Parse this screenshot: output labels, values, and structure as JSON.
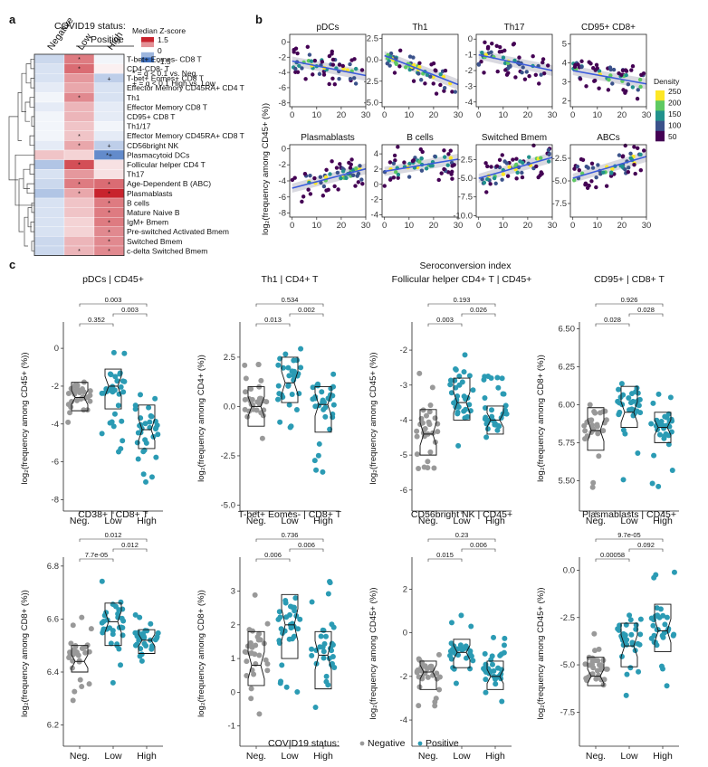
{
  "panel_labels": {
    "a": "a",
    "b": "b",
    "c": "c"
  },
  "heatmap": {
    "status_title": "COVID19 status:",
    "positive_label": "Positive",
    "columns": [
      "Negative",
      "Low",
      "High"
    ],
    "legend_title": "Median Z-score",
    "legend_ticks": [
      "1.5",
      "0",
      "-1.5"
    ],
    "legend_note_1": "* = q < 0.1 vs. Neg.",
    "legend_note_2": "+ = q < 0.1 High vs. Low",
    "rows": [
      {
        "label": "T-bet+ Eomes- CD8 T",
        "z": [
          -0.4,
          0.9,
          -0.1
        ],
        "marks": [
          "",
          "*",
          ""
        ]
      },
      {
        "label": "CD4-CD8- T",
        "z": [
          -0.3,
          1.0,
          0.1
        ],
        "marks": [
          "",
          "*",
          ""
        ]
      },
      {
        "label": "T-bet+ Eomes+ CD8 T",
        "z": [
          -0.3,
          0.7,
          -0.5
        ],
        "marks": [
          "",
          "",
          "+"
        ]
      },
      {
        "label": "Effector Memory CD45RA+ CD4 T",
        "z": [
          -0.2,
          0.6,
          -0.3
        ],
        "marks": [
          "",
          "",
          ""
        ]
      },
      {
        "label": "Th1",
        "z": [
          -0.1,
          0.8,
          -0.3
        ],
        "marks": [
          "",
          "*",
          ""
        ]
      },
      {
        "label": "Effector Memory CD8 T",
        "z": [
          -0.2,
          0.5,
          -0.2
        ],
        "marks": [
          "",
          "",
          ""
        ]
      },
      {
        "label": "CD95+ CD8 T",
        "z": [
          -0.1,
          0.5,
          -0.2
        ],
        "marks": [
          "",
          "",
          ""
        ]
      },
      {
        "label": "Th1/17",
        "z": [
          -0.1,
          0.4,
          -0.1
        ],
        "marks": [
          "",
          "",
          ""
        ]
      },
      {
        "label": "Effector Memory CD45RA+ CD8 T",
        "z": [
          -0.1,
          0.4,
          -0.2
        ],
        "marks": [
          "",
          "*",
          ""
        ]
      },
      {
        "label": "CD56bright NK",
        "z": [
          -0.2,
          0.6,
          -0.5
        ],
        "marks": [
          "",
          "*",
          "+"
        ]
      },
      {
        "label": "Plasmacytoid DCs",
        "z": [
          0.4,
          0.3,
          -1.2
        ],
        "marks": [
          "",
          "",
          "*+"
        ]
      },
      {
        "label": "Follicular helper CD4 T",
        "z": [
          -0.6,
          1.2,
          0.2
        ],
        "marks": [
          "",
          "*",
          ""
        ]
      },
      {
        "label": "Th17",
        "z": [
          -0.3,
          0.7,
          0.2
        ],
        "marks": [
          "",
          "",
          ""
        ]
      },
      {
        "label": "Age-Dependent B (ABC)",
        "z": [
          -0.4,
          0.9,
          1.0
        ],
        "marks": [
          "",
          "*",
          "*"
        ]
      },
      {
        "label": "Plasmablasts",
        "z": [
          -0.6,
          0.6,
          1.5
        ],
        "marks": [
          "",
          "*",
          "*"
        ]
      },
      {
        "label": "B cells",
        "z": [
          -0.3,
          0.4,
          0.9
        ],
        "marks": [
          "",
          "",
          "*"
        ]
      },
      {
        "label": "Mature Naive B",
        "z": [
          -0.3,
          0.4,
          0.9
        ],
        "marks": [
          "",
          "",
          "*"
        ]
      },
      {
        "label": "IgM+ Bmem",
        "z": [
          -0.3,
          0.3,
          0.9
        ],
        "marks": [
          "",
          "",
          "*"
        ]
      },
      {
        "label": "Pre-switched Activated Bmem",
        "z": [
          -0.3,
          0.3,
          0.8
        ],
        "marks": [
          "",
          "",
          "*"
        ]
      },
      {
        "label": "Switched Bmem",
        "z": [
          -0.4,
          0.5,
          0.8
        ],
        "marks": [
          "",
          "",
          "*"
        ]
      },
      {
        "label": "c-delta Switched Bmem",
        "z": [
          -0.4,
          0.5,
          0.8
        ],
        "marks": [
          "",
          "*",
          "*"
        ]
      }
    ]
  },
  "scatter_panel": {
    "xlabel": "Seroconversion index",
    "ylabel": "log₂(frequency among CD45+ (%))",
    "density_title": "Density",
    "density_ticks": [
      "250",
      "200",
      "150",
      "100",
      "50"
    ],
    "density_colors": [
      "#440154",
      "#3b528b",
      "#21918c",
      "#5ec962",
      "#fde725"
    ],
    "trend_color": "#3b5bdb"
  },
  "status_colors": {
    "Negative": "#999999",
    "Positive": "#2b9bb4"
  },
  "legend_bottom": {
    "title": "COVID19 status:",
    "negative": "Negative",
    "positive": "Positive"
  },
  "chart_data": [
    {
      "type": "scatter",
      "title": "pDCs",
      "xticks": [
        "0",
        "10",
        "20",
        "30"
      ],
      "yticks": [
        "0",
        "-2",
        "-4",
        "-6",
        "-8"
      ],
      "xlim": [
        -1,
        30
      ],
      "ylim": [
        -8.5,
        1
      ],
      "trend": [
        [
          0,
          -2.5
        ],
        [
          30,
          -4.4
        ]
      ]
    },
    {
      "type": "scatter",
      "title": "Th1",
      "xticks": [
        "0",
        "10",
        "20",
        "30"
      ],
      "yticks": [
        "2.5",
        "0.0",
        "-2.5",
        "-5.0"
      ],
      "xlim": [
        -1,
        30
      ],
      "ylim": [
        -5.5,
        3
      ],
      "trend": [
        [
          0,
          0.5
        ],
        [
          30,
          -2.9
        ]
      ]
    },
    {
      "type": "scatter",
      "title": "Th17",
      "xticks": [
        "0",
        "10",
        "20",
        "30"
      ],
      "yticks": [
        "0",
        "-1",
        "-2",
        "-3",
        "-4"
      ],
      "xlim": [
        -1,
        30
      ],
      "ylim": [
        -4.3,
        0.3
      ],
      "trend": [
        [
          0,
          -1.0
        ],
        [
          30,
          -2.0
        ]
      ]
    },
    {
      "type": "scatter",
      "title": "CD95+ CD8+",
      "xticks": [
        "0",
        "10",
        "20",
        "30"
      ],
      "yticks": [
        "5",
        "4",
        "3",
        "2"
      ],
      "xlim": [
        -1,
        30
      ],
      "ylim": [
        1.7,
        5.5
      ],
      "trend": [
        [
          0,
          3.6
        ],
        [
          30,
          2.9
        ]
      ]
    },
    {
      "type": "scatter",
      "title": "Plasmablasts",
      "xticks": [
        "0",
        "10",
        "20",
        "30"
      ],
      "yticks": [
        "0",
        "-2",
        "-4",
        "-6",
        "-8"
      ],
      "xlim": [
        -1,
        30
      ],
      "ylim": [
        -8.5,
        0.5
      ],
      "trend": [
        [
          0,
          -4.9
        ],
        [
          30,
          -2.5
        ]
      ]
    },
    {
      "type": "scatter",
      "title": "B cells",
      "xticks": [
        "0",
        "10",
        "20",
        "30"
      ],
      "yticks": [
        "4",
        "2",
        "0",
        "-2",
        "-4"
      ],
      "xlim": [
        -1,
        30
      ],
      "ylim": [
        -4.3,
        5.2
      ],
      "trend": [
        [
          0,
          1.7
        ],
        [
          30,
          3.3
        ]
      ]
    },
    {
      "type": "scatter",
      "title": "Switched Bmem",
      "xticks": [
        "0",
        "10",
        "20",
        "30"
      ],
      "yticks": [
        "-2.5",
        "-5.0",
        "-7.5",
        "-10.0"
      ],
      "xlim": [
        -1,
        30
      ],
      "ylim": [
        -10.2,
        -0.5
      ],
      "trend": [
        [
          0,
          -5.0
        ],
        [
          30,
          -2.2
        ]
      ]
    },
    {
      "type": "scatter",
      "title": "ABCs",
      "xticks": [
        "0",
        "10",
        "20",
        "30"
      ],
      "yticks": [
        "-2.5",
        "-5.0",
        "-7.5"
      ],
      "xlim": [
        -1,
        30
      ],
      "ylim": [
        -9,
        -1
      ],
      "trend": [
        [
          0,
          -4.7
        ],
        [
          30,
          -2.3
        ]
      ]
    },
    {
      "type": "box",
      "title": "pDCs | CD45+",
      "ylabel": "log₂(frequency among CD45+ (%))",
      "categories": [
        "Neg.",
        "Low",
        "High"
      ],
      "yticks": [
        "0",
        "-2",
        "-4",
        "-6",
        "-8"
      ],
      "ylim": [
        -8.6,
        1.2
      ],
      "boxes": [
        [
          -3.3,
          -2.6,
          -1.8,
          -4.0,
          -0.9
        ],
        [
          -3.2,
          -2.0,
          -1.1,
          -5.5,
          0.0
        ],
        [
          -5.3,
          -4.3,
          -3.0,
          -7.5,
          -1.5
        ]
      ],
      "comparisons": [
        {
          "pair": [
            "Neg.",
            "Low"
          ],
          "p": "0.352"
        },
        {
          "pair": [
            "Neg.",
            "High"
          ],
          "p": "0.003"
        },
        {
          "pair": [
            "Low",
            "High"
          ],
          "p": "0.003"
        }
      ]
    },
    {
      "type": "box",
      "title": "Th1 | CD4+ T",
      "ylabel": "log₂(frequency among CD4+ (%))",
      "categories": [
        "Neg.",
        "Low",
        "High"
      ],
      "yticks": [
        "2.5",
        "0.0",
        "-2.5",
        "-5.0"
      ],
      "ylim": [
        -5.3,
        4.1
      ],
      "boxes": [
        [
          -1.0,
          0.0,
          1.0,
          -2.5,
          3.0
        ],
        [
          0.2,
          1.2,
          2.5,
          -1.3,
          3.6
        ],
        [
          -1.3,
          0.1,
          1.0,
          -3.5,
          2.5
        ]
      ],
      "comparisons": [
        {
          "pair": [
            "Neg.",
            "Low"
          ],
          "p": "0.013"
        },
        {
          "pair": [
            "Neg.",
            "High"
          ],
          "p": "0.534"
        },
        {
          "pair": [
            "Low",
            "High"
          ],
          "p": "0.002"
        }
      ]
    },
    {
      "type": "box",
      "title": "Follicular helper CD4+ T | CD45+",
      "ylabel": "log₂(frequency among CD45+ (%))",
      "categories": [
        "Neg.",
        "Low",
        "High"
      ],
      "yticks": [
        "-2",
        "-3",
        "-4",
        "-5",
        "-6"
      ],
      "ylim": [
        -6.6,
        -1.3
      ],
      "boxes": [
        [
          -5.0,
          -4.4,
          -3.7,
          -6.0,
          -2.6
        ],
        [
          -4.0,
          -3.5,
          -2.8,
          -5.2,
          -2.0
        ],
        [
          -4.4,
          -4.0,
          -3.6,
          -5.6,
          -2.7
        ]
      ],
      "comparisons": [
        {
          "pair": [
            "Neg.",
            "Low"
          ],
          "p": "0.003"
        },
        {
          "pair": [
            "Neg.",
            "High"
          ],
          "p": "0.193"
        },
        {
          "pair": [
            "Low",
            "High"
          ],
          "p": "0.026"
        }
      ]
    },
    {
      "type": "box",
      "title": "CD95+ | CD8+ T",
      "ylabel": "log₂(frequency among CD8+ (%))",
      "categories": [
        "Neg.",
        "Low",
        "High"
      ],
      "yticks": [
        "6.50",
        "6.25",
        "6.00",
        "5.75",
        "5.50"
      ],
      "ylim": [
        5.3,
        6.52
      ],
      "boxes": [
        [
          5.7,
          5.83,
          5.98,
          5.45,
          6.1
        ],
        [
          5.85,
          5.95,
          6.12,
          5.45,
          6.3
        ],
        [
          5.75,
          5.85,
          5.95,
          5.45,
          6.15
        ]
      ],
      "comparisons": [
        {
          "pair": [
            "Neg.",
            "Low"
          ],
          "p": "0.028"
        },
        {
          "pair": [
            "Neg.",
            "High"
          ],
          "p": "0.926"
        },
        {
          "pair": [
            "Low",
            "High"
          ],
          "p": "0.028"
        }
      ]
    },
    {
      "type": "box",
      "title": "CD38+ | CD8+ T",
      "ylabel": "log₂(frequency among CD8+ (%))",
      "categories": [
        "Neg.",
        "Low",
        "High"
      ],
      "yticks": [
        "6.8",
        "6.6",
        "6.4",
        "6.2"
      ],
      "ylim": [
        6.12,
        6.82
      ],
      "boxes": [
        [
          6.4,
          6.44,
          6.5,
          6.28,
          6.62
        ],
        [
          6.5,
          6.59,
          6.66,
          6.35,
          6.78
        ],
        [
          6.47,
          6.52,
          6.56,
          6.4,
          6.64
        ]
      ],
      "comparisons": [
        {
          "pair": [
            "Neg.",
            "Low"
          ],
          "p": "7.7e-05"
        },
        {
          "pair": [
            "Neg.",
            "High"
          ],
          "p": "0.012"
        },
        {
          "pair": [
            "Low",
            "High"
          ],
          "p": "0.012"
        }
      ]
    },
    {
      "type": "box",
      "title": "T-bet+ Eomes- | CD8+ T",
      "ylabel": "log₂(frequency among CD8+ (%))",
      "categories": [
        "Neg.",
        "Low",
        "High"
      ],
      "yticks": [
        "3",
        "2",
        "1",
        "0",
        "-1"
      ],
      "ylim": [
        -1.6,
        3.9
      ],
      "boxes": [
        [
          0.2,
          0.8,
          1.8,
          -0.7,
          3.0
        ],
        [
          1.0,
          2.0,
          2.9,
          -0.3,
          3.8
        ],
        [
          0.1,
          1.1,
          1.8,
          -1.0,
          3.3
        ]
      ],
      "comparisons": [
        {
          "pair": [
            "Neg.",
            "Low"
          ],
          "p": "0.006"
        },
        {
          "pair": [
            "Neg.",
            "High"
          ],
          "p": "0.736"
        },
        {
          "pair": [
            "Low",
            "High"
          ],
          "p": "0.006"
        }
      ]
    },
    {
      "type": "box",
      "title": "CD56bright NK | CD45+",
      "ylabel": "log₂(frequency among CD45+ (%))",
      "categories": [
        "Neg.",
        "Low",
        "High"
      ],
      "yticks": [
        "2",
        "0",
        "-2",
        "-4"
      ],
      "ylim": [
        -5.2,
        3.3
      ],
      "boxes": [
        [
          -2.6,
          -1.8,
          -1.3,
          -3.6,
          -0.5
        ],
        [
          -1.6,
          -0.9,
          -0.3,
          -3.2,
          1.0
        ],
        [
          -2.6,
          -2.0,
          -1.3,
          -4.2,
          0.1
        ]
      ],
      "comparisons": [
        {
          "pair": [
            "Neg.",
            "Low"
          ],
          "p": "0.015"
        },
        {
          "pair": [
            "Neg.",
            "High"
          ],
          "p": "0.23"
        },
        {
          "pair": [
            "Low",
            "High"
          ],
          "p": "0.006"
        }
      ]
    },
    {
      "type": "box",
      "title": "Plasmablasts | CD45+",
      "ylabel": "log₂(frequency among CD45+ (%))",
      "categories": [
        "Neg.",
        "Low",
        "High"
      ],
      "yticks": [
        "0.0",
        "-2.5",
        "-5.0",
        "-7.5"
      ],
      "ylim": [
        -9.3,
        0.5
      ],
      "boxes": [
        [
          -6.1,
          -5.6,
          -4.6,
          -7.0,
          -3.0
        ],
        [
          -5.1,
          -4.0,
          -2.8,
          -6.8,
          -1.0
        ],
        [
          -4.3,
          -3.2,
          -1.8,
          -6.5,
          0.0
        ]
      ],
      "comparisons": [
        {
          "pair": [
            "Neg.",
            "Low"
          ],
          "p": "0.00058"
        },
        {
          "pair": [
            "Neg.",
            "High"
          ],
          "p": "9.7e-05"
        },
        {
          "pair": [
            "Low",
            "High"
          ],
          "p": "0.092"
        }
      ]
    }
  ]
}
